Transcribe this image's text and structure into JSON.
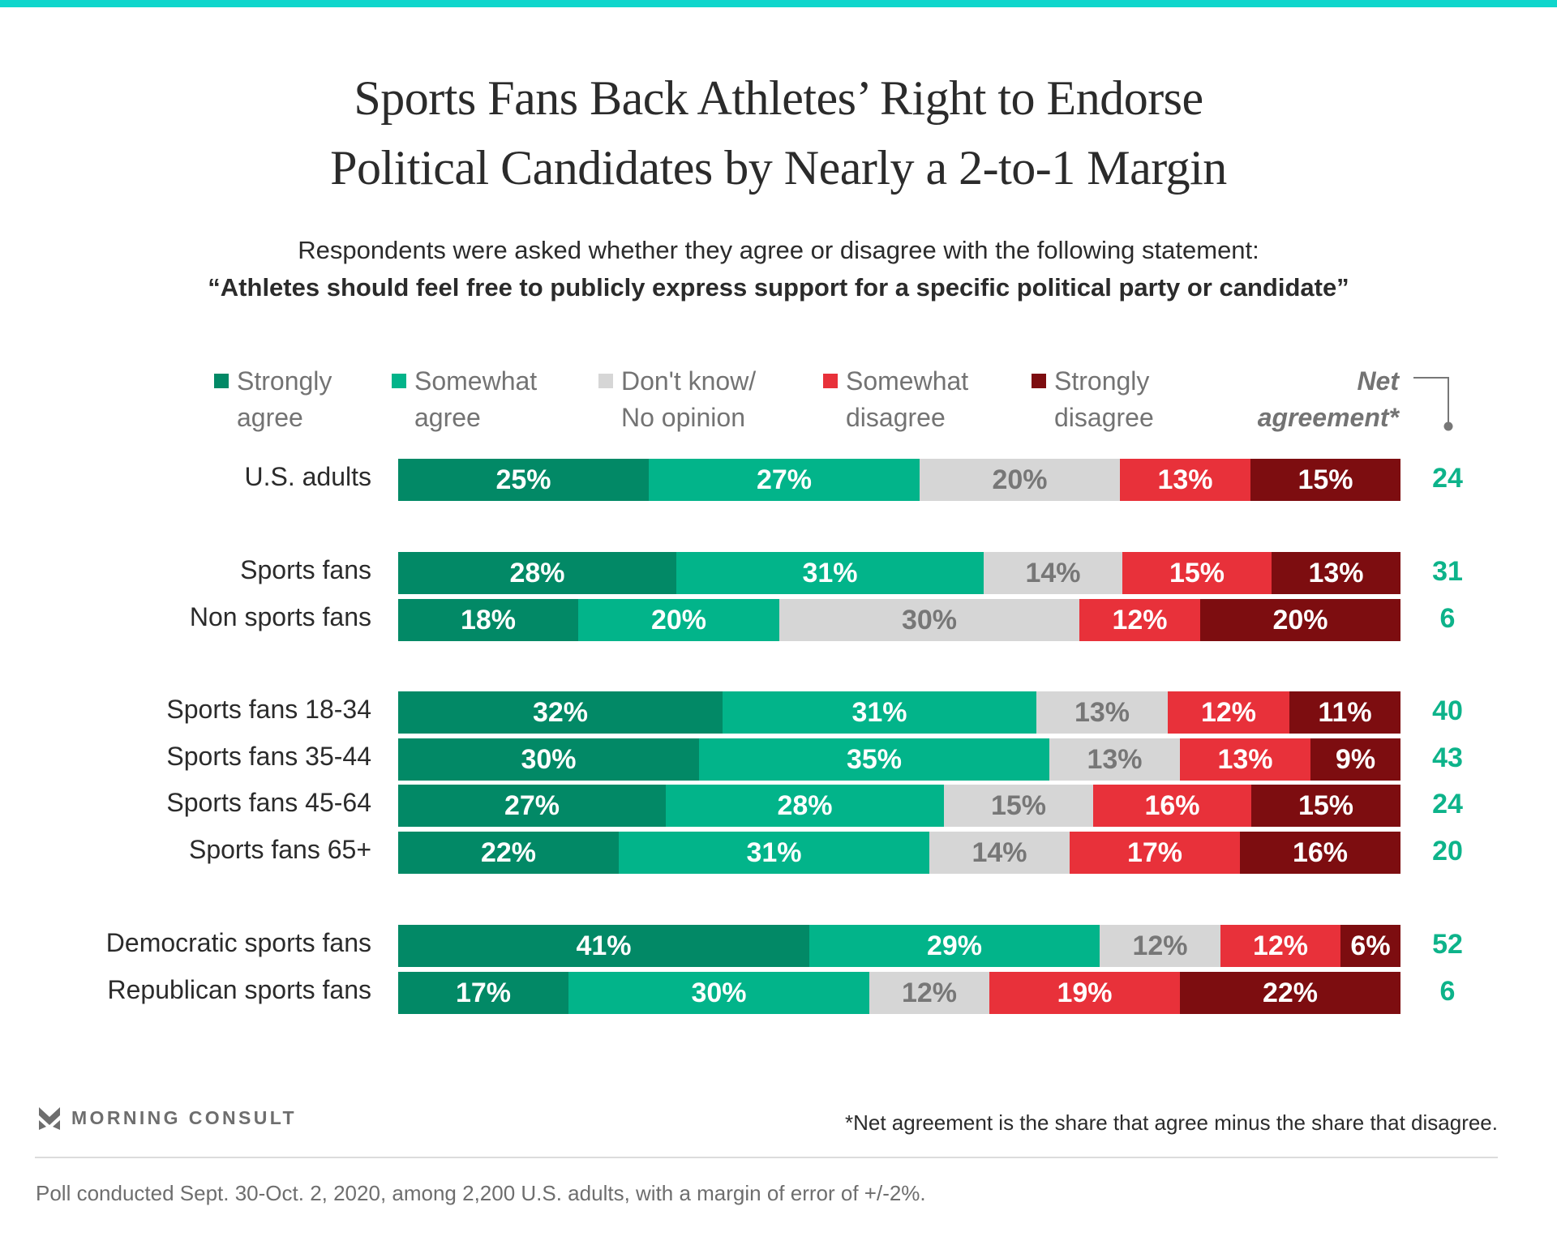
{
  "header": {
    "title_line1": "Sports Fans Back Athletes’ Right to Endorse",
    "title_line2": "Political Candidates by Nearly a 2-to-1 Margin",
    "subtitle": "Respondents were asked whether they agree or disagree with the following statement:",
    "question": "“Athletes should feel free to publicly express support for a specific political party or candidate”"
  },
  "colors": {
    "accent_bar": "#0fd6cc",
    "strongly_agree": "#028966",
    "somewhat_agree": "#02b48a",
    "dont_know": "#d6d6d6",
    "somewhat_disagree": "#e8313a",
    "strongly_disagree": "#7d0d10",
    "net_text": "#0db38a"
  },
  "chart_data": {
    "type": "bar",
    "orientation": "horizontal",
    "stacked": true,
    "title": "Sports Fans Back Athletes’ Right to Endorse Political Candidates by Nearly a 2-to-1 Margin",
    "xlim": [
      0,
      100
    ],
    "unit": "%",
    "categories": [
      "U.S. adults",
      "Sports fans",
      "Non sports fans",
      "Sports fans 18-34",
      "Sports fans 35-44",
      "Sports fans 45-64",
      "Sports fans 65+",
      "Democratic sports fans",
      "Republican sports fans"
    ],
    "groups": [
      [
        0
      ],
      [
        1,
        2
      ],
      [
        3,
        4,
        5,
        6
      ],
      [
        7,
        8
      ]
    ],
    "legend_position": "top",
    "series": [
      {
        "key": "strongly_agree",
        "name_line1": "Strongly",
        "name_line2": "agree",
        "values": [
          25,
          28,
          18,
          32,
          30,
          27,
          22,
          41,
          17
        ]
      },
      {
        "key": "somewhat_agree",
        "name_line1": "Somewhat",
        "name_line2": "agree",
        "values": [
          27,
          31,
          20,
          31,
          35,
          28,
          31,
          29,
          30
        ]
      },
      {
        "key": "dont_know",
        "name_line1": "Don't know/",
        "name_line2": "No opinion",
        "values": [
          20,
          14,
          30,
          13,
          13,
          15,
          14,
          12,
          12
        ]
      },
      {
        "key": "somewhat_disagree",
        "name_line1": "Somewhat",
        "name_line2": "disagree",
        "values": [
          13,
          15,
          12,
          12,
          13,
          16,
          17,
          12,
          19
        ]
      },
      {
        "key": "strongly_disagree",
        "name_line1": "Strongly",
        "name_line2": "disagree",
        "values": [
          15,
          13,
          20,
          11,
          9,
          15,
          16,
          6,
          22
        ]
      }
    ],
    "net_agreement": {
      "label_line1": "Net",
      "label_line2": "agreement*",
      "values": [
        24,
        31,
        6,
        40,
        43,
        24,
        20,
        52,
        6
      ]
    }
  },
  "footer": {
    "brand": "MORNING CONSULT",
    "footnote": "*Net agreement is the share that agree minus the share that disagree.",
    "source": "Poll conducted Sept. 30-Oct. 2, 2020, among 2,200 U.S. adults, with a margin of error of +/-2%."
  }
}
